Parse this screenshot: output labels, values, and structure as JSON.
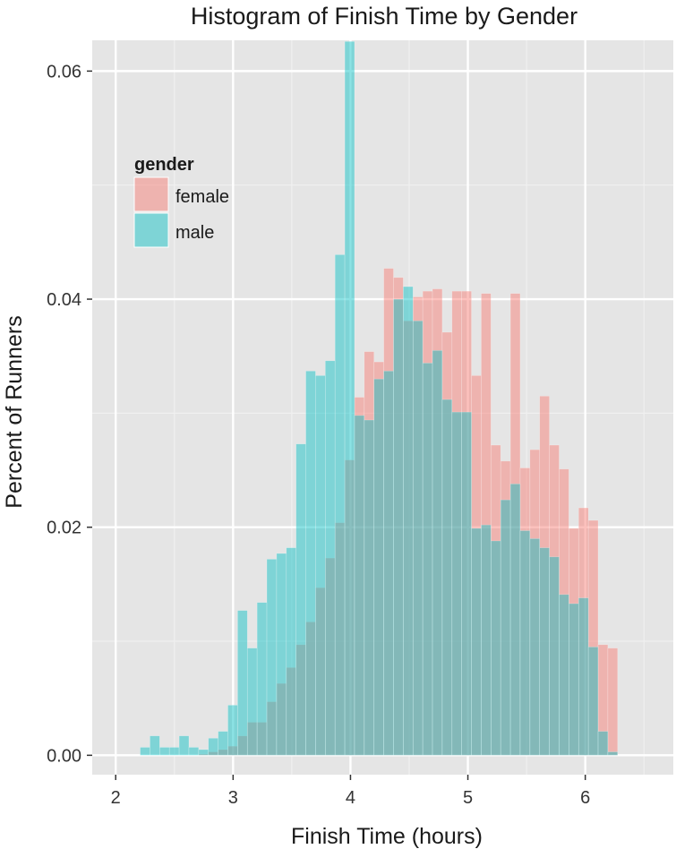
{
  "chart_data": {
    "type": "histogram",
    "title": "Histogram of Finish Time by Gender",
    "xlabel": "Finish Time (hours)",
    "ylabel": "Percent of Runners",
    "xlim": [
      1.8,
      6.75
    ],
    "ylim": [
      -0.0017,
      0.0627
    ],
    "x_ticks": [
      2,
      3,
      4,
      5,
      6
    ],
    "y_ticks": [
      0.0,
      0.02,
      0.04,
      0.06
    ],
    "x_tick_labels": [
      "2",
      "3",
      "4",
      "5",
      "6"
    ],
    "y_tick_labels": [
      "0.00",
      "0.02",
      "0.04",
      "0.06"
    ],
    "bin_width": 0.083,
    "grid": true,
    "legend": {
      "title": "gender",
      "position": "top-left",
      "entries": [
        "female",
        "male"
      ]
    },
    "colors": {
      "panel_background": "#e5e5e5",
      "grid_major": "#ffffff",
      "grid_minor": "#f0f0f0",
      "female": "#f8766d",
      "male": "#00bfc4"
    },
    "x": [
      2.25,
      2.333,
      2.416,
      2.499,
      2.582,
      2.665,
      2.748,
      2.831,
      2.914,
      2.997,
      3.08,
      3.163,
      3.246,
      3.329,
      3.412,
      3.495,
      3.578,
      3.661,
      3.744,
      3.827,
      3.91,
      3.993,
      4.076,
      4.159,
      4.242,
      4.325,
      4.408,
      4.491,
      4.574,
      4.657,
      4.74,
      4.823,
      4.906,
      4.989,
      5.072,
      5.155,
      5.238,
      5.321,
      5.404,
      5.487,
      5.57,
      5.653,
      5.736,
      5.819,
      5.902,
      5.985,
      6.068,
      6.151,
      6.234
    ],
    "series": [
      {
        "name": "female",
        "values": [
          0.0,
          0.0,
          0.0,
          0.0,
          0.0,
          0.0,
          0.0001,
          0.0003,
          0.0005,
          0.0008,
          0.0017,
          0.0029,
          0.0029,
          0.0047,
          0.0063,
          0.0077,
          0.0097,
          0.0117,
          0.0147,
          0.0173,
          0.0204,
          0.0259,
          0.0314,
          0.0354,
          0.0345,
          0.0427,
          0.0419,
          0.0381,
          0.0402,
          0.0407,
          0.0409,
          0.0371,
          0.0407,
          0.0407,
          0.0333,
          0.0405,
          0.0272,
          0.0258,
          0.0405,
          0.0252,
          0.0268,
          0.0315,
          0.0272,
          0.0251,
          0.0199,
          0.0217,
          0.0206,
          0.0097,
          0.0094
        ]
      },
      {
        "name": "male",
        "values": [
          0.0007,
          0.0017,
          0.0007,
          0.0007,
          0.0017,
          0.0007,
          0.0005,
          0.0015,
          0.0021,
          0.0044,
          0.0127,
          0.0094,
          0.0134,
          0.0172,
          0.0177,
          0.0182,
          0.0273,
          0.0337,
          0.0333,
          0.0346,
          0.0439,
          0.0626,
          0.0298,
          0.0294,
          0.033,
          0.0337,
          0.04,
          0.0411,
          0.0381,
          0.0344,
          0.0355,
          0.0312,
          0.0301,
          0.0301,
          0.0199,
          0.0202,
          0.0188,
          0.0224,
          0.0238,
          0.0197,
          0.019,
          0.0182,
          0.0174,
          0.0141,
          0.0133,
          0.0138,
          0.0095,
          0.0021,
          0.0003
        ]
      }
    ]
  }
}
